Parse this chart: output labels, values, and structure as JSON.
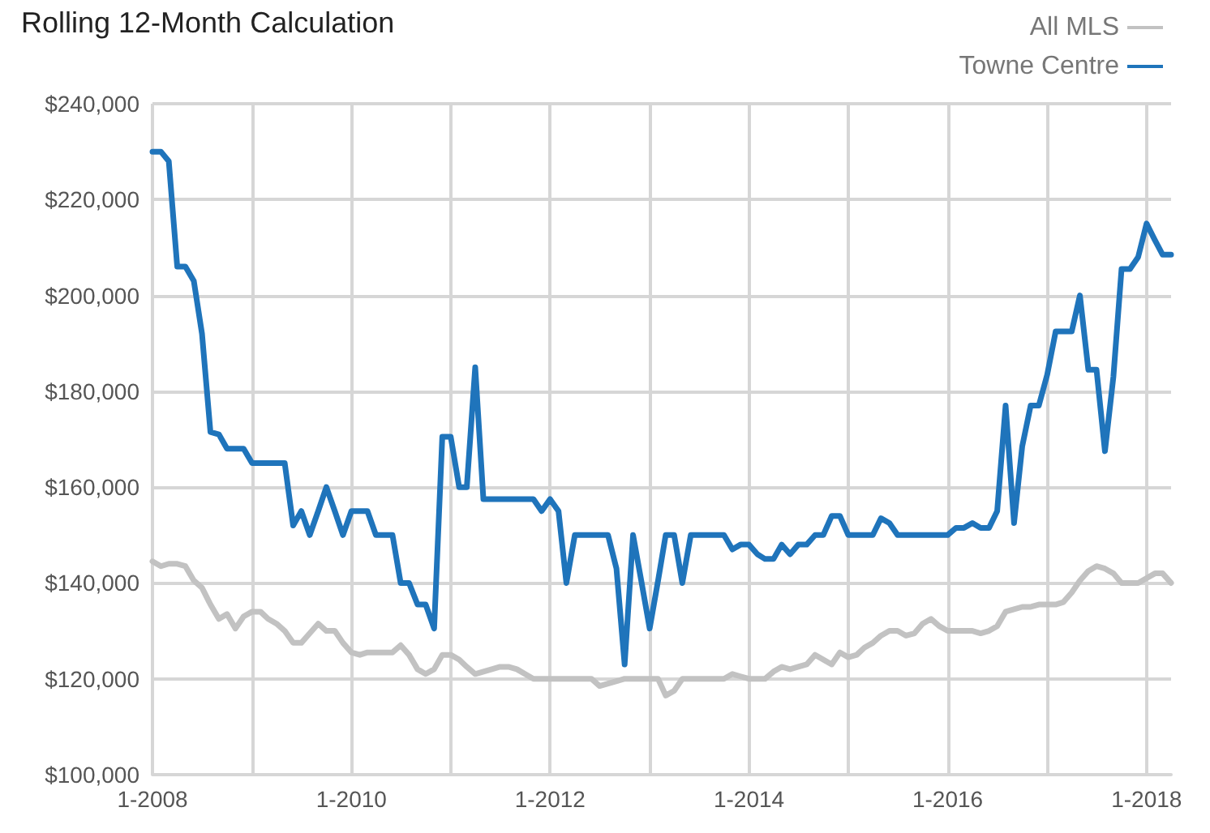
{
  "chart_data": {
    "type": "line",
    "title": "Rolling 12-Month Calculation",
    "x": [
      "2008-01",
      "2008-02",
      "2008-03",
      "2008-04",
      "2008-05",
      "2008-06",
      "2008-07",
      "2008-08",
      "2008-09",
      "2008-10",
      "2008-11",
      "2008-12",
      "2009-01",
      "2009-02",
      "2009-03",
      "2009-04",
      "2009-05",
      "2009-06",
      "2009-07",
      "2009-08",
      "2009-09",
      "2009-10",
      "2009-11",
      "2009-12",
      "2010-01",
      "2010-02",
      "2010-03",
      "2010-04",
      "2010-05",
      "2010-06",
      "2010-07",
      "2010-08",
      "2010-09",
      "2010-10",
      "2010-11",
      "2010-12",
      "2011-01",
      "2011-02",
      "2011-03",
      "2011-04",
      "2011-05",
      "2011-06",
      "2011-07",
      "2011-08",
      "2011-09",
      "2011-10",
      "2011-11",
      "2011-12",
      "2012-01",
      "2012-02",
      "2012-03",
      "2012-04",
      "2012-05",
      "2012-06",
      "2012-07",
      "2012-08",
      "2012-09",
      "2012-10",
      "2012-11",
      "2012-12",
      "2013-01",
      "2013-02",
      "2013-03",
      "2013-04",
      "2013-05",
      "2013-06",
      "2013-07",
      "2013-08",
      "2013-09",
      "2013-10",
      "2013-11",
      "2013-12",
      "2014-01",
      "2014-02",
      "2014-03",
      "2014-04",
      "2014-05",
      "2014-06",
      "2014-07",
      "2014-08",
      "2014-09",
      "2014-10",
      "2014-11",
      "2014-12",
      "2015-01",
      "2015-02",
      "2015-03",
      "2015-04",
      "2015-05",
      "2015-06",
      "2015-07",
      "2015-08",
      "2015-09",
      "2015-10",
      "2015-11",
      "2015-12",
      "2016-01",
      "2016-02",
      "2016-03",
      "2016-04",
      "2016-05",
      "2016-06",
      "2016-07",
      "2016-08",
      "2016-09",
      "2016-10",
      "2016-11",
      "2016-12",
      "2017-01",
      "2017-02",
      "2017-03",
      "2017-04",
      "2017-05",
      "2017-06",
      "2017-07",
      "2017-08",
      "2017-09",
      "2017-10",
      "2017-11",
      "2017-12",
      "2018-01",
      "2018-02",
      "2018-03",
      "2018-04"
    ],
    "series": [
      {
        "name": "All MLS",
        "color": "#c2c2c2",
        "values": [
          144500,
          143500,
          144000,
          144000,
          143500,
          140500,
          139000,
          135500,
          132500,
          133500,
          130500,
          133000,
          134000,
          134000,
          132500,
          131500,
          130000,
          127500,
          127500,
          129500,
          131500,
          130000,
          130000,
          127500,
          125500,
          125000,
          125500,
          125500,
          125500,
          125500,
          127000,
          125000,
          122000,
          121000,
          122000,
          125000,
          125000,
          124000,
          122500,
          121000,
          121500,
          122000,
          122500,
          122500,
          122000,
          121000,
          120000,
          120000,
          120000,
          120000,
          120000,
          120000,
          120000,
          120000,
          118500,
          119000,
          119500,
          120000,
          120000,
          120000,
          120000,
          120000,
          116500,
          117500,
          120000,
          120000,
          120000,
          120000,
          120000,
          120000,
          121000,
          120500,
          120000,
          120000,
          120000,
          121500,
          122500,
          122000,
          122500,
          123000,
          125000,
          124000,
          123000,
          125500,
          124500,
          125000,
          126500,
          127500,
          129000,
          130000,
          130000,
          129000,
          129500,
          131500,
          132500,
          131000,
          130000,
          130000,
          130000,
          130000,
          129500,
          130000,
          131000,
          134000,
          134500,
          135000,
          135000,
          135500,
          135500,
          135500,
          136000,
          138000,
          140500,
          142500,
          143500,
          143000,
          142000,
          140000,
          140000,
          140000,
          141000,
          142000,
          142000,
          140000
        ]
      },
      {
        "name": "Towne Centre",
        "color": "#1f74bb",
        "values": [
          230000,
          230000,
          228000,
          206000,
          206000,
          203000,
          192000,
          171500,
          171000,
          168000,
          168000,
          168000,
          165000,
          165000,
          165000,
          165000,
          165000,
          152000,
          155000,
          150000,
          155000,
          160000,
          155000,
          150000,
          155000,
          155000,
          155000,
          150000,
          150000,
          150000,
          140000,
          140000,
          135500,
          135500,
          130500,
          170500,
          170500,
          160000,
          160000,
          185000,
          157500,
          157500,
          157500,
          157500,
          157500,
          157500,
          157500,
          155000,
          157500,
          155000,
          140000,
          150000,
          150000,
          150000,
          150000,
          150000,
          143000,
          123000,
          150000,
          140500,
          130500,
          140500,
          150000,
          150000,
          140000,
          150000,
          150000,
          150000,
          150000,
          150000,
          147000,
          148000,
          148000,
          146000,
          145000,
          145000,
          148000,
          146000,
          148000,
          148000,
          150000,
          150000,
          154000,
          154000,
          150000,
          150000,
          150000,
          150000,
          153500,
          152500,
          150000,
          150000,
          150000,
          150000,
          150000,
          150000,
          150000,
          151500,
          151500,
          152500,
          151500,
          151500,
          155000,
          177000,
          152500,
          168500,
          177000,
          177000,
          183500,
          192500,
          192500,
          192500,
          200000,
          184500,
          184500,
          167500,
          183000,
          205500,
          205500,
          208000,
          215000,
          211500,
          208500,
          208500
        ]
      }
    ],
    "xlim": [
      "2008-01",
      "2018-04"
    ],
    "xticks": [
      {
        "value": "2008-01",
        "label": "1-2008"
      },
      {
        "value": "2009-01",
        "label": null
      },
      {
        "value": "2010-01",
        "label": "1-2010"
      },
      {
        "value": "2011-01",
        "label": null
      },
      {
        "value": "2012-01",
        "label": "1-2012"
      },
      {
        "value": "2013-01",
        "label": null
      },
      {
        "value": "2014-01",
        "label": "1-2014"
      },
      {
        "value": "2015-01",
        "label": null
      },
      {
        "value": "2016-01",
        "label": "1-2016"
      },
      {
        "value": "2017-01",
        "label": null
      },
      {
        "value": "2018-01",
        "label": "1-2018"
      }
    ],
    "ylim": [
      100000,
      240000
    ],
    "yticks": [
      {
        "value": 100000,
        "label": "$100,000"
      },
      {
        "value": 120000,
        "label": "$120,000"
      },
      {
        "value": 140000,
        "label": "$140,000"
      },
      {
        "value": 160000,
        "label": "$160,000"
      },
      {
        "value": 180000,
        "label": "$180,000"
      },
      {
        "value": 200000,
        "label": "$200,000"
      },
      {
        "value": 220000,
        "label": "$220,000"
      },
      {
        "value": 240000,
        "label": "$240,000"
      }
    ],
    "grid": true,
    "legend": "top right",
    "marker": "none",
    "line_style": "solid"
  }
}
